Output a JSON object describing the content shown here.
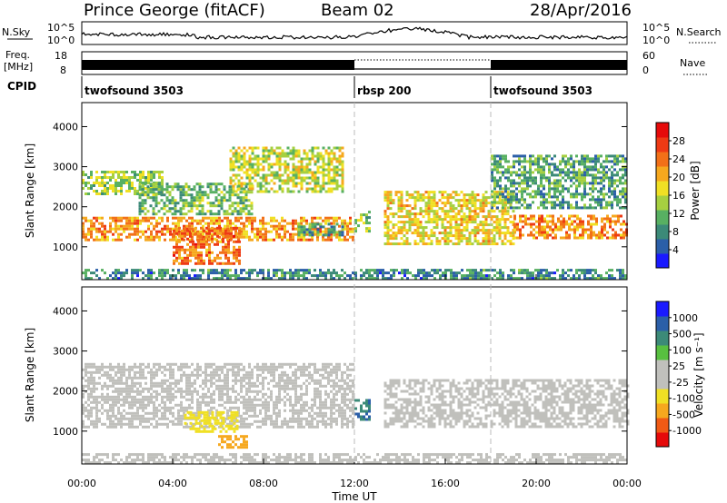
{
  "header": {
    "station": "Prince George (fitACF)",
    "beam": "Beam 02",
    "date": "28/Apr/2016"
  },
  "nsky_panel": {
    "left_label": "N.Sky",
    "left_top_tick": "10^5",
    "left_bottom_tick": "10^0",
    "right_top_tick": "10^5",
    "right_bottom_tick": "10^0",
    "right_label": "N.Search"
  },
  "freq_panel": {
    "left_label_1": "Freq.",
    "left_label_2": "[MHz]",
    "left_top_tick": "18",
    "left_bottom_tick": "8",
    "right_top_tick": "60",
    "right_bottom_tick": "0",
    "right_label": "Nave"
  },
  "cpid": {
    "label": "CPID",
    "segments": [
      {
        "name": "twofsound 3503",
        "start_hour": 0,
        "end_hour": 12
      },
      {
        "name": "rbsp 200",
        "start_hour": 12,
        "end_hour": 18
      },
      {
        "name": "twofsound 3503",
        "start_hour": 18,
        "end_hour": 24
      }
    ]
  },
  "colors": {
    "power_scale": [
      "#1a1aff",
      "#2b5fa8",
      "#3c8a78",
      "#58b062",
      "#a6d040",
      "#f0e024",
      "#f6a81e",
      "#f27018",
      "#ee3a14",
      "#e60a0a"
    ],
    "velocity_scale": [
      "#e60a0a",
      "#f05a14",
      "#f6a81e",
      "#f0e024",
      "#c0c0bc",
      "#c0c0bc",
      "#58c040",
      "#3c8a78",
      "#2b5fa8",
      "#1a1aff"
    ]
  },
  "chart_data": [
    {
      "type": "heatmap",
      "title": "",
      "xlabel": "",
      "ylabel": "Slant Range [km]",
      "colorbar_label": "Power [dB]",
      "colorbar_ticks": [
        "4",
        "8",
        "12",
        "16",
        "20",
        "24",
        "28"
      ],
      "colorbar_range": [
        0,
        32
      ],
      "xlim": [
        0,
        24
      ],
      "ylim": [
        180,
        4600
      ],
      "y_ticks": [
        "1000",
        "2000",
        "3000",
        "4000"
      ],
      "x_ticks": [
        "00:00",
        "04:00",
        "08:00",
        "12:00",
        "16:00",
        "20:00",
        "00:00"
      ],
      "grid": false,
      "scatter_regions": [
        {
          "t0": 0.0,
          "t1": 12.0,
          "r0": 1150,
          "r1": 1750,
          "v": 22,
          "note": "main band"
        },
        {
          "t0": 0.0,
          "t1": 3.5,
          "r0": 2300,
          "r1": 2900,
          "v": 14
        },
        {
          "t0": 2.5,
          "t1": 7.5,
          "r0": 1800,
          "r1": 2600,
          "v": 12
        },
        {
          "t0": 4.0,
          "t1": 7.0,
          "r0": 600,
          "r1": 1500,
          "v": 24
        },
        {
          "t0": 6.5,
          "t1": 11.5,
          "r0": 2400,
          "r1": 3500,
          "v": 16
        },
        {
          "t0": 9.5,
          "t1": 11.5,
          "r0": 1300,
          "r1": 1600,
          "v": 10
        },
        {
          "t0": 12.0,
          "t1": 12.7,
          "r0": 1400,
          "r1": 1900,
          "v": 14
        },
        {
          "t0": 13.3,
          "t1": 19.0,
          "r0": 1100,
          "r1": 2400,
          "v": 18
        },
        {
          "t0": 19.0,
          "t1": 24.0,
          "r0": 1200,
          "r1": 1800,
          "v": 22
        },
        {
          "t0": 18.0,
          "t1": 24.0,
          "r0": 2000,
          "r1": 3300,
          "v": 10
        },
        {
          "t0": 0.0,
          "t1": 24.0,
          "r0": 180,
          "r1": 450,
          "v": 8
        }
      ]
    },
    {
      "type": "heatmap",
      "title": "",
      "xlabel": "Time UT",
      "ylabel": "Slant Range [km]",
      "colorbar_label": "Velocity [m s⁻¹]",
      "colorbar_ticks": [
        "-1000",
        "-500",
        "-100",
        "-25",
        "25",
        "100",
        "500",
        "1000"
      ],
      "xlim": [
        0,
        24
      ],
      "ylim": [
        180,
        4600
      ],
      "y_ticks": [
        "1000",
        "2000",
        "3000",
        "4000"
      ],
      "x_ticks": [
        "00:00",
        "04:00",
        "08:00",
        "12:00",
        "16:00",
        "20:00",
        "00:00"
      ],
      "grid": false,
      "scatter_regions": [
        {
          "t0": 0.0,
          "t1": 12.0,
          "r0": 1100,
          "r1": 2700,
          "v": 0
        },
        {
          "t0": 4.5,
          "t1": 6.8,
          "r0": 1000,
          "r1": 1500,
          "v": -80
        },
        {
          "t0": 6.0,
          "t1": 7.3,
          "r0": 600,
          "r1": 900,
          "v": -200
        },
        {
          "t0": 12.0,
          "t1": 12.7,
          "r0": 1300,
          "r1": 1800,
          "v": 500
        },
        {
          "t0": 13.3,
          "t1": 24.0,
          "r0": 1100,
          "r1": 2300,
          "v": 0
        },
        {
          "t0": 0.0,
          "t1": 24.0,
          "r0": 180,
          "r1": 450,
          "v": 0
        }
      ]
    }
  ]
}
